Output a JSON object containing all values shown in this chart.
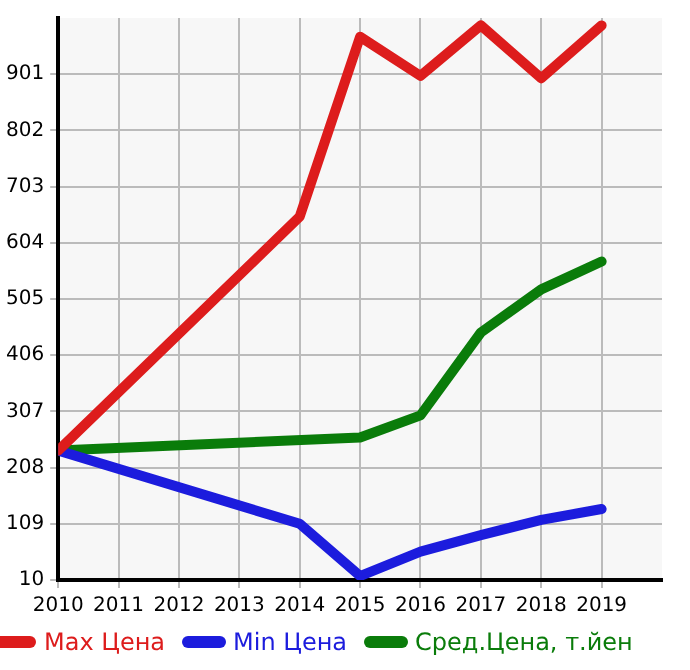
{
  "chart_data": {
    "type": "line",
    "x": [
      2010,
      2011,
      2012,
      2013,
      2014,
      2015,
      2016,
      2017,
      2018,
      2019
    ],
    "series": [
      {
        "name": "Max Цена",
        "color": "#dd1c1c",
        "values": [
          238,
          null,
          null,
          null,
          650,
          967,
          898,
          987,
          894,
          987
        ]
      },
      {
        "name": "Min Цена",
        "color": "#1c1cdd",
        "values": [
          238,
          null,
          null,
          null,
          109,
          17,
          60,
          89,
          116,
          135
        ]
      },
      {
        "name": "Сред.Цена, т.йен",
        "color": "#0a7c0a",
        "values": [
          238,
          null,
          null,
          null,
          null,
          261,
          300,
          446,
          522,
          571
        ]
      }
    ],
    "xlim": [
      2010,
      2020
    ],
    "xticks": [
      2010,
      2011,
      2012,
      2013,
      2014,
      2015,
      2016,
      2017,
      2018,
      2019
    ],
    "ylim": [
      10,
      1000
    ],
    "yticks": [
      10,
      109,
      208,
      307,
      406,
      505,
      604,
      703,
      802,
      901
    ],
    "grid": true,
    "legend": "bottom",
    "marker": "none",
    "line_style": "solid"
  }
}
